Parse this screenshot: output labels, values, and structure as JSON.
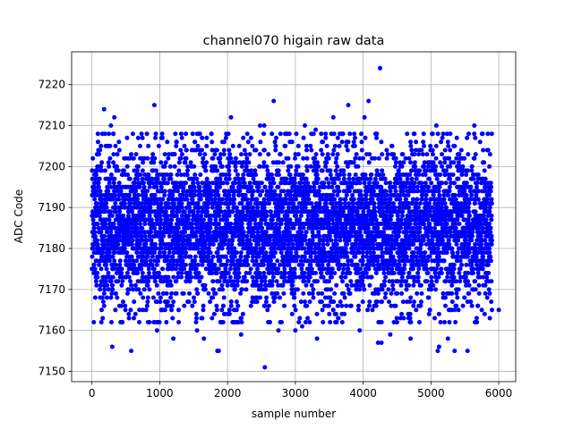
{
  "chart_data": {
    "type": "scatter",
    "title": "channel070 higain raw data",
    "xlabel": "sample number",
    "ylabel": "ADC Code",
    "xlim": [
      -300,
      6250
    ],
    "ylim": [
      7147.5,
      7228
    ],
    "x_ticks": [
      0,
      1000,
      2000,
      3000,
      4000,
      5000,
      6000
    ],
    "y_ticks": [
      7150,
      7160,
      7170,
      7180,
      7190,
      7200,
      7210,
      7220
    ],
    "x_tick_labels": [
      "0",
      "1000",
      "2000",
      "3000",
      "4000",
      "5000",
      "6000"
    ],
    "y_tick_labels": [
      "7150",
      "7160",
      "7170",
      "7180",
      "7190",
      "7200",
      "7210",
      "7220"
    ],
    "grid": true,
    "marker_color": "#0000ff",
    "series": [
      {
        "n_points": 5900,
        "mean": 7185.5,
        "typical_range": [
          7164,
          7206
        ],
        "x": [
          4250,
          2550,
          1850,
          2680,
          920,
          180,
          3780,
          4080,
          4020,
          3560,
          2480,
          2540,
          2050,
          80,
          5640,
          5540,
          5120,
          5100,
          5350,
          5250,
          300,
          580,
          960,
          3950,
          4270,
          4220,
          3320,
          2750,
          3140,
          5080,
          1870,
          280,
          330,
          3000,
          3100,
          2200,
          1550,
          1650,
          1200,
          1250,
          250,
          1950,
          3300,
          4400,
          4700,
          5900,
          6000,
          2600,
          3500,
          4600,
          5200
        ],
        "y": [
          7224,
          7151,
          7155,
          7216,
          7215,
          7214,
          7215,
          7216,
          7212,
          7212,
          7210,
          7210,
          7212,
          7200,
          7210,
          7155,
          7156,
          7155,
          7155,
          7158,
          7156,
          7155,
          7160,
          7160,
          7157,
          7157,
          7158,
          7160,
          7210,
          7210,
          7155,
          7210,
          7212,
          7160,
          7161,
          7159,
          7160,
          7158,
          7158,
          7206,
          7200,
          7206,
          7209,
          7159,
          7158,
          7165,
          7165,
          7162,
          7164,
          7163,
          7162
        ]
      }
    ]
  }
}
